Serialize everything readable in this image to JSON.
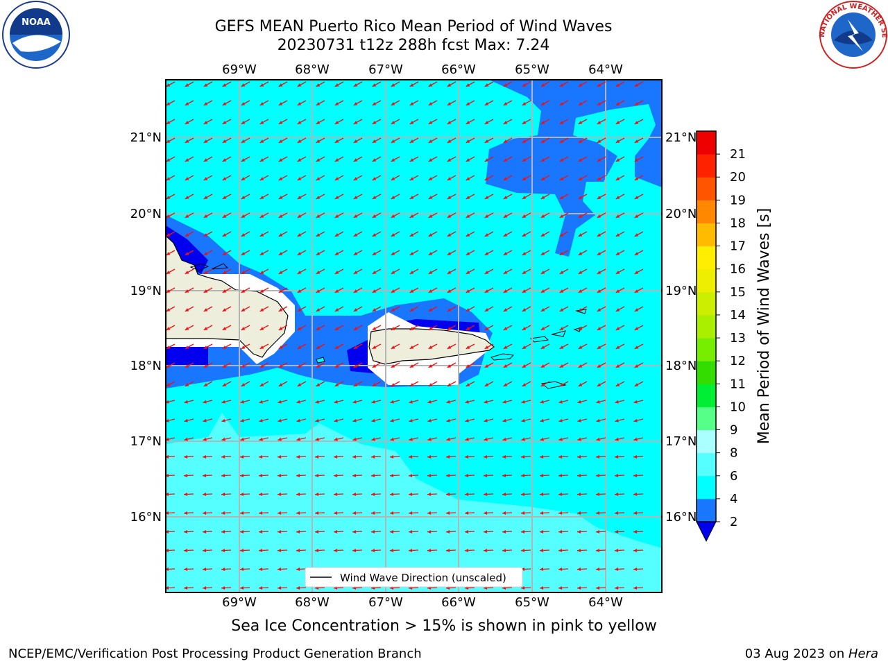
{
  "header": {
    "title_line1": "GEFS MEAN Puerto Rico Mean Period of Wind Waves",
    "title_line2": "20230731 t12z 288h fcst   Max: 7.24"
  },
  "logos": {
    "left": "NOAA",
    "right": "NATIONAL WEATHER SERVICE"
  },
  "map": {
    "lon_labels": [
      "69°W",
      "68°W",
      "67°W",
      "66°W",
      "65°W",
      "64°W"
    ],
    "lat_labels": [
      "21°N",
      "20°N",
      "19°N",
      "18°N",
      "17°N",
      "16°N"
    ],
    "legend_text": "Wind Wave Direction (unscaled)",
    "colors": {
      "ocean": "#00ffff",
      "light_cyan": "#55ffff",
      "blue": "#1976ff",
      "dark_blue": "#0000ee",
      "land": "#eeeedd"
    }
  },
  "colorbar": {
    "label": "Mean Period of Wind Waves [s]",
    "ticks": [
      "2",
      "4",
      "6",
      "8",
      "9",
      "10",
      "11",
      "12",
      "13",
      "14",
      "15",
      "16",
      "17",
      "18",
      "19",
      "20",
      "21"
    ],
    "colors": [
      "#1976ff",
      "#00ffff",
      "#55ffff",
      "#aaffff",
      "#55ff88",
      "#00ee33",
      "#33dd00",
      "#77ee00",
      "#aaee00",
      "#ccee00",
      "#eeee00",
      "#ffee00",
      "#ffbb00",
      "#ff8800",
      "#ff5500",
      "#ff2200",
      "#ee0000"
    ],
    "extend_color": "#0000ee"
  },
  "subtitle": "Sea Ice Concentration > 15% is shown in pink to yellow",
  "footer": {
    "left": "NCEP/EMC/Verification Post Processing Product Generation Branch",
    "right_date": "03 Aug 2023 on ",
    "right_host": "Hera"
  }
}
